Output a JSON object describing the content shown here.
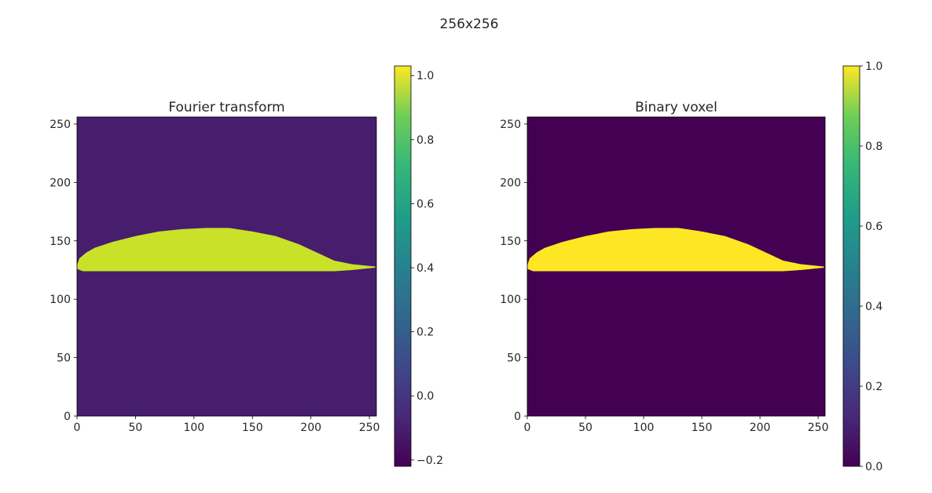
{
  "figure": {
    "suptitle": "256x256"
  },
  "chart_data": [
    {
      "type": "heatmap",
      "title": "Fourier transform",
      "xlabel": "",
      "ylabel": "",
      "xlim": [
        0,
        256
      ],
      "ylim": [
        0,
        256
      ],
      "xticks": [
        0,
        50,
        100,
        150,
        200,
        250
      ],
      "yticks": [
        0,
        50,
        100,
        150,
        200,
        250
      ],
      "colormap": "viridis",
      "color_range": [
        -0.22,
        1.03
      ],
      "colorbar_ticks": [
        -0.2,
        0.0,
        0.2,
        0.4,
        0.6,
        0.8,
        1.0
      ],
      "background_value": -0.12,
      "shape_value": 0.93,
      "shape_upper_edge": [
        [
          0,
          129
        ],
        [
          2,
          135
        ],
        [
          8,
          140
        ],
        [
          15,
          144
        ],
        [
          30,
          149
        ],
        [
          50,
          154
        ],
        [
          70,
          158
        ],
        [
          90,
          160
        ],
        [
          110,
          161
        ],
        [
          130,
          161
        ],
        [
          150,
          158
        ],
        [
          170,
          154
        ],
        [
          190,
          147
        ],
        [
          205,
          140
        ],
        [
          220,
          133
        ],
        [
          235,
          130
        ],
        [
          255,
          128
        ]
      ],
      "shape_lower_edge": [
        [
          0,
          126
        ],
        [
          5,
          124
        ],
        [
          20,
          124
        ],
        [
          220,
          124
        ],
        [
          235,
          125
        ],
        [
          255,
          127
        ]
      ],
      "shape_description": "airfoil profile"
    },
    {
      "type": "heatmap",
      "title": "Binary voxel",
      "xlabel": "",
      "ylabel": "",
      "xlim": [
        0,
        256
      ],
      "ylim": [
        0,
        256
      ],
      "xticks": [
        0,
        50,
        100,
        150,
        200,
        250
      ],
      "yticks": [
        0,
        50,
        100,
        150,
        200,
        250
      ],
      "colormap": "viridis",
      "color_range": [
        0.0,
        1.0
      ],
      "colorbar_ticks": [
        0.0,
        0.2,
        0.4,
        0.6,
        0.8,
        1.0
      ],
      "background_value": 0.0,
      "shape_value": 1.0,
      "shape_upper_edge": [
        [
          0,
          129
        ],
        [
          2,
          135
        ],
        [
          8,
          140
        ],
        [
          15,
          144
        ],
        [
          30,
          149
        ],
        [
          50,
          154
        ],
        [
          70,
          158
        ],
        [
          90,
          160
        ],
        [
          110,
          161
        ],
        [
          130,
          161
        ],
        [
          150,
          158
        ],
        [
          170,
          154
        ],
        [
          190,
          147
        ],
        [
          205,
          140
        ],
        [
          220,
          133
        ],
        [
          235,
          130
        ],
        [
          255,
          128
        ]
      ],
      "shape_lower_edge": [
        [
          0,
          126
        ],
        [
          5,
          124
        ],
        [
          20,
          124
        ],
        [
          220,
          124
        ],
        [
          235,
          125
        ],
        [
          255,
          127
        ]
      ],
      "shape_description": "airfoil profile"
    }
  ]
}
